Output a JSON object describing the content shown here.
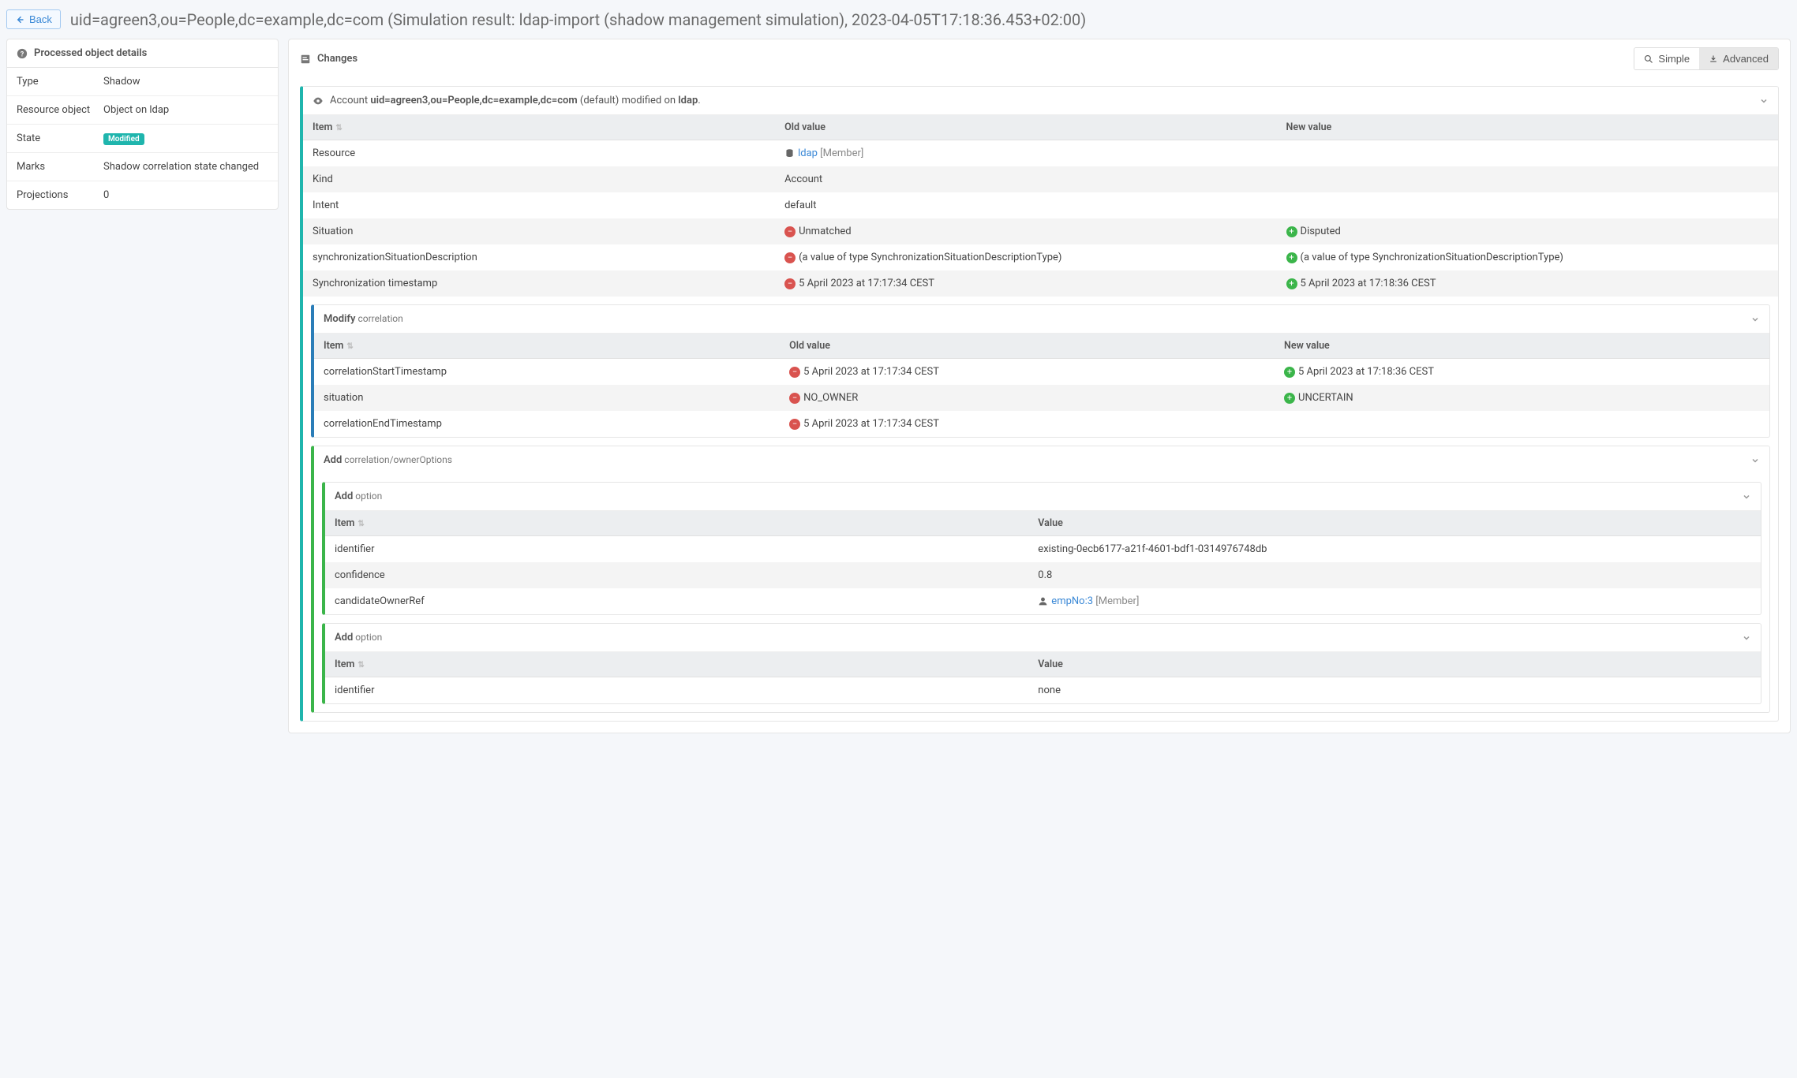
{
  "header": {
    "back_label": "Back",
    "title": "uid=agreen3,ou=People,dc=example,dc=com (Simulation result: ldap-import (shadow management simulation), 2023-04-05T17:18:36.453+02:00)"
  },
  "side": {
    "title": "Processed object details",
    "rows": {
      "type_k": "Type",
      "type_v": "Shadow",
      "res_k": "Resource object",
      "res_v": "Object on ldap",
      "state_k": "State",
      "state_badge": "Modified",
      "marks_k": "Marks",
      "marks_v": "Shadow correlation state changed",
      "proj_k": "Projections",
      "proj_v": "0"
    }
  },
  "main": {
    "title": "Changes",
    "toggle_simple": "Simple",
    "toggle_advanced": "Advanced"
  },
  "account_block": {
    "prefix": "Account ",
    "dn": "uid=agreen3,ou=People,dc=example,dc=com",
    "mid": " (default) modified on ",
    "target": "ldap",
    "suffix": ".",
    "cols": {
      "item": "Item",
      "old": "Old value",
      "new": "New value"
    },
    "rows": [
      {
        "item": "Resource",
        "old_link": "ldap",
        "old_suffix": " [Member]",
        "old_icon": "db"
      },
      {
        "item": "Kind",
        "old_plain": "Account"
      },
      {
        "item": "Intent",
        "old_plain": "default"
      },
      {
        "item": "Situation",
        "old_minus": "Unmatched",
        "new_plus": "Disputed"
      },
      {
        "item": "synchronizationSituationDescription",
        "old_minus": "(a value of type SynchronizationSituationDescriptionType)",
        "new_plus": "(a value of type SynchronizationSituationDescriptionType)"
      },
      {
        "item": "Synchronization timestamp",
        "old_minus": "5 April 2023 at 17:17:34 CEST",
        "new_plus": "5 April 2023 at 17:18:36 CEST"
      }
    ]
  },
  "modify_block": {
    "title_bold": "Modify",
    "title_sub": " correlation",
    "cols": {
      "item": "Item",
      "old": "Old value",
      "new": "New value"
    },
    "rows": [
      {
        "item": "correlationStartTimestamp",
        "old_minus": "5 April 2023 at 17:17:34 CEST",
        "new_plus": "5 April 2023 at 17:18:36 CEST"
      },
      {
        "item": "situation",
        "old_minus": "NO_OWNER",
        "new_plus": "UNCERTAIN"
      },
      {
        "item": "correlationEndTimestamp",
        "old_minus": "5 April 2023 at 17:17:34 CEST"
      }
    ]
  },
  "add_owner_block": {
    "title_bold": "Add",
    "title_sub": " correlation/ownerOptions"
  },
  "add_option1": {
    "title_bold": "Add",
    "title_sub": " option",
    "cols": {
      "item": "Item",
      "value": "Value"
    },
    "rows": [
      {
        "item": "identifier",
        "value": "existing-0ecb6177-a21f-4601-bdf1-0314976748db"
      },
      {
        "item": "confidence",
        "value": "0.8"
      },
      {
        "item": "candidateOwnerRef",
        "value_link": "empNo:3",
        "value_suffix": " [Member]",
        "value_icon": "user"
      }
    ]
  },
  "add_option2": {
    "title_bold": "Add",
    "title_sub": " option",
    "cols": {
      "item": "Item",
      "value": "Value"
    },
    "rows": [
      {
        "item": "identifier",
        "value": "none"
      }
    ]
  }
}
